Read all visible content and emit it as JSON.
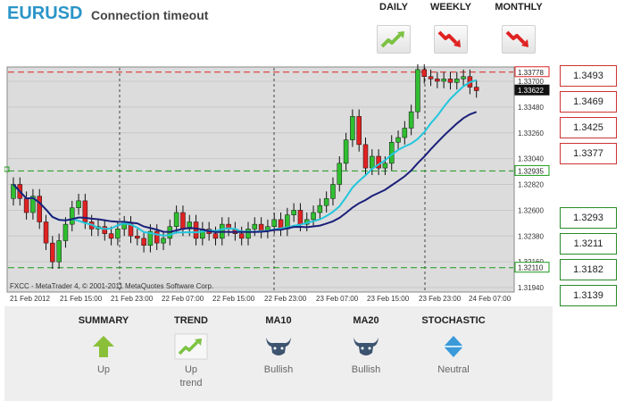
{
  "header": {
    "symbol": "EURUSD",
    "status": "Connection timeout"
  },
  "timeframes": [
    {
      "label": "DAILY",
      "icon": "trend-up-icon",
      "direction": "up"
    },
    {
      "label": "WEEKLY",
      "icon": "trend-down-icon",
      "direction": "down"
    },
    {
      "label": "MONTHLY",
      "icon": "trend-down-icon",
      "direction": "down"
    }
  ],
  "chart": {
    "watermark": "FXCC - MetaTrader 4, © 2001-2011 MetaQuotes Software Corp.",
    "y_labels": [
      "1.33700",
      "1.33480",
      "1.33260",
      "1.33040",
      "1.32820",
      "1.32600",
      "1.32380",
      "1.32160",
      "1.31940"
    ],
    "x_labels": [
      "21 Feb 2012",
      "21 Feb 15:00",
      "21 Feb 23:00",
      "22 Feb 07:00",
      "22 Feb 15:00",
      "22 Feb 23:00",
      "23 Feb 07:00",
      "23 Feb 15:00",
      "23 Feb 23:00",
      "24 Feb 07:00"
    ],
    "tags": [
      {
        "value": "1.33778",
        "kind": "resistance"
      },
      {
        "value": "1.33622",
        "kind": "price"
      },
      {
        "value": "1.32935",
        "kind": "support"
      },
      {
        "value": "1.32110",
        "kind": "support"
      }
    ],
    "colors": {
      "bull": "#2fbf2f",
      "bear": "#e02222",
      "ma10": "#22c6dc",
      "ma20": "#1a1f7a",
      "resistance": "#d22",
      "support": "#1a9a1a",
      "background": "#dcdcdc"
    }
  },
  "levels": {
    "resistance": [
      "1.3493",
      "1.3469",
      "1.3425",
      "1.3377"
    ],
    "support": [
      "1.3293",
      "1.3211",
      "1.3182",
      "1.3139"
    ]
  },
  "indicators": [
    {
      "title": "SUMMARY",
      "icon": "arrow-up-icon",
      "value": "Up",
      "value2": ""
    },
    {
      "title": "TREND",
      "icon": "trend-up-icon",
      "value": "Up",
      "value2": "trend"
    },
    {
      "title": "MA10",
      "icon": "bull-icon",
      "value": "Bullish",
      "value2": ""
    },
    {
      "title": "MA20",
      "icon": "bull-icon",
      "value": "Bullish",
      "value2": ""
    },
    {
      "title": "STOCHASTIC",
      "icon": "diamond-icon",
      "value": "Neutral",
      "value2": ""
    }
  ]
}
